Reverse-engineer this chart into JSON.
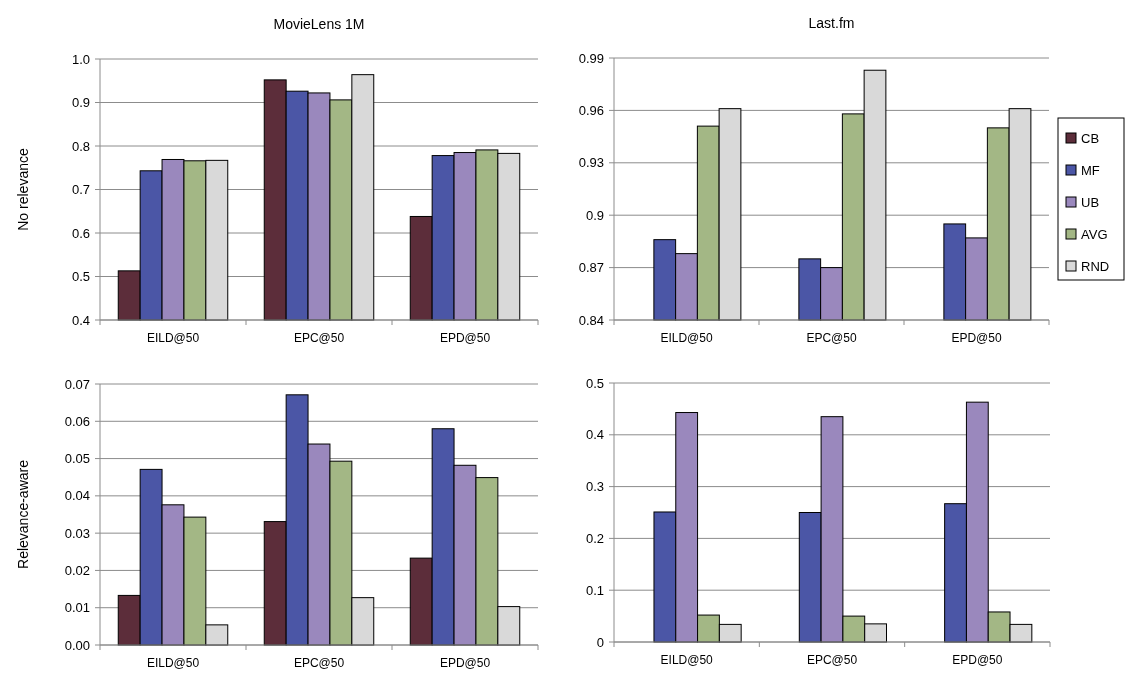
{
  "chart_data": [
    {
      "type": "bar",
      "title": "MovieLens 1M",
      "ylabel": "No relevance",
      "categories": [
        "EILD@50",
        "EPC@50",
        "EPD@50"
      ],
      "ylim": [
        0.4,
        1.0
      ],
      "yticks": [
        0.4,
        0.5,
        0.6,
        0.7,
        0.8,
        0.9,
        {
          "value": 1.0,
          "label": "1.0"
        }
      ],
      "grid": "y",
      "legend": false,
      "series": [
        {
          "color": "#5c2d3a",
          "values": [
            0.513,
            0.952,
            0.638
          ]
        },
        {
          "color": "#4b56a6",
          "values": [
            0.743,
            0.926,
            0.778
          ]
        },
        {
          "color": "#9a88bd",
          "values": [
            0.769,
            0.922,
            0.785
          ]
        },
        {
          "color": "#a3b785",
          "values": [
            0.766,
            0.906,
            0.791
          ]
        },
        {
          "color": "#d9d9d9",
          "values": [
            0.767,
            0.964,
            0.783
          ]
        }
      ]
    },
    {
      "type": "bar",
      "title": "Last.fm",
      "categories": [
        "EILD@50",
        "EPC@50",
        "EPD@50"
      ],
      "ylim": [
        0.84,
        0.99
      ],
      "yticks": [
        0.84,
        0.87,
        0.9,
        0.93,
        0.96,
        0.99
      ],
      "grid": "y",
      "legend": "right",
      "series": [
        {
          "name": "CB",
          "color": "#5c2d3a",
          "values": [
            null,
            null,
            null
          ]
        },
        {
          "name": "MF",
          "color": "#4b56a6",
          "values": [
            0.886,
            0.875,
            0.895
          ]
        },
        {
          "name": "UB",
          "color": "#9a88bd",
          "values": [
            0.878,
            0.87,
            0.887
          ]
        },
        {
          "name": "AVG",
          "color": "#a3b785",
          "values": [
            0.951,
            0.958,
            0.95
          ]
        },
        {
          "name": "RND",
          "color": "#d9d9d9",
          "values": [
            0.961,
            0.983,
            0.961
          ]
        }
      ]
    },
    {
      "type": "bar",
      "ylabel": "Relevance-aware",
      "categories": [
        "EILD@50",
        "EPC@50",
        "EPD@50"
      ],
      "ylim": [
        0,
        0.07
      ],
      "yticks": [
        {
          "value": 0,
          "label": "0.00"
        },
        0.01,
        0.02,
        0.03,
        0.04,
        0.05,
        0.06,
        0.07
      ],
      "grid": "y",
      "legend": false,
      "series": [
        {
          "color": "#5c2d3a",
          "values": [
            0.0133,
            0.0331,
            0.0233
          ]
        },
        {
          "color": "#4b56a6",
          "values": [
            0.0471,
            0.0671,
            0.058
          ]
        },
        {
          "color": "#9a88bd",
          "values": [
            0.0376,
            0.0539,
            0.0482
          ]
        },
        {
          "color": "#a3b785",
          "values": [
            0.0343,
            0.0493,
            0.0449
          ]
        },
        {
          "color": "#d9d9d9",
          "values": [
            0.0054,
            0.0127,
            0.0103
          ]
        }
      ]
    },
    {
      "type": "bar",
      "categories": [
        "EILD@50",
        "EPC@50",
        "EPD@50"
      ],
      "ylim": [
        0,
        0.5
      ],
      "yticks": [
        0,
        0.1,
        0.2,
        0.3,
        0.4,
        0.5
      ],
      "grid": "y",
      "legend": false,
      "series": [
        {
          "values": [
            null,
            null,
            null
          ]
        },
        {
          "color": "#4b56a6",
          "values": [
            0.251,
            0.25,
            0.267
          ]
        },
        {
          "color": "#9a88bd",
          "values": [
            0.443,
            0.435,
            0.463
          ]
        },
        {
          "color": "#a3b785",
          "values": [
            0.052,
            0.05,
            0.058
          ]
        },
        {
          "color": "#d9d9d9",
          "values": [
            0.034,
            0.035,
            0.034
          ]
        }
      ]
    }
  ]
}
